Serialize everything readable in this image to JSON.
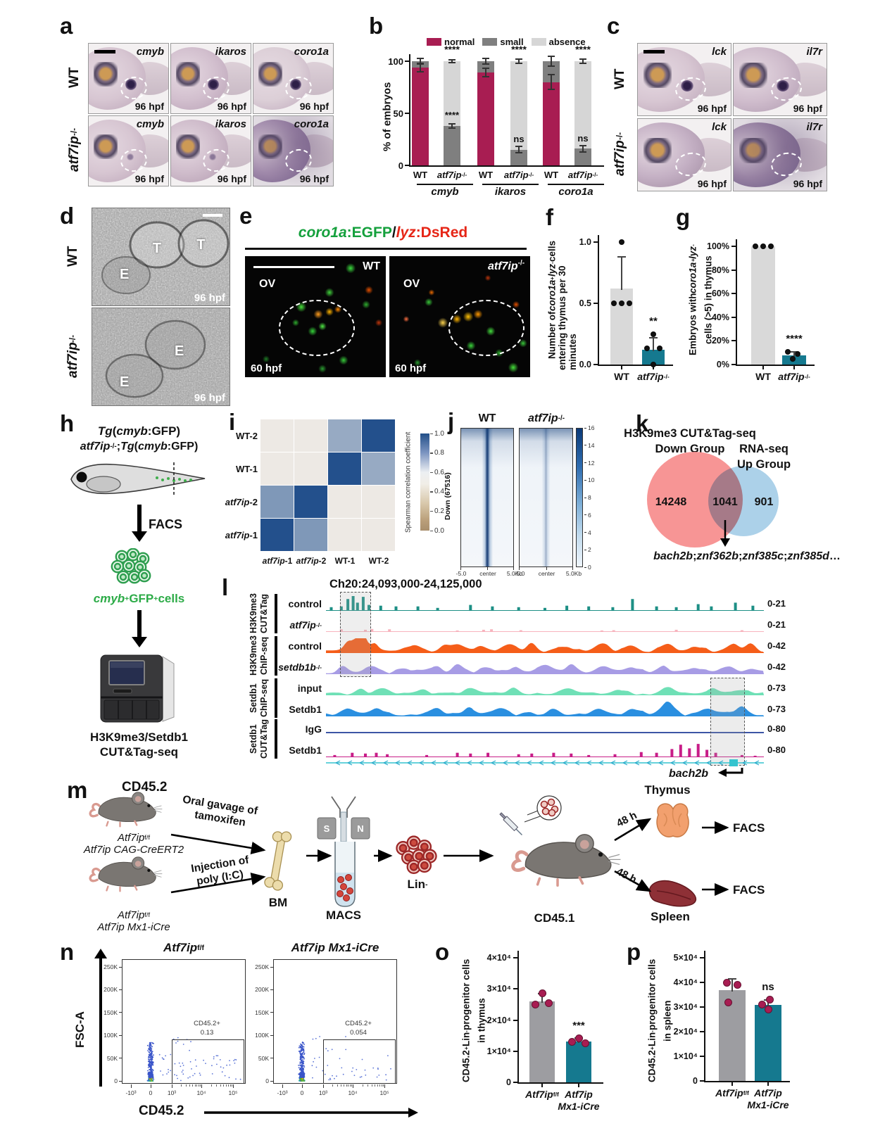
{
  "colors": {
    "crimson": "#a81d52",
    "teal": "#15798f",
    "wt_bar_light": "#d9d9d9",
    "wt_bar_gray": "#9d9da1",
    "small_gray": "#7f7f7f",
    "absence_gray": "#d6d6d6",
    "dot_crimson": "#a81d52"
  },
  "panels": {
    "a": {
      "label": "a",
      "row_labels": [
        "WT",
        "*atf7ip*^-/-^"
      ],
      "genes": [
        "*cmyb*",
        "*ikaros*",
        "*coro1a*"
      ],
      "time": "96 hpf"
    },
    "b": {
      "label": "b"
    },
    "c": {
      "label": "c",
      "row_labels": [
        "WT",
        "*atf7ip*^-/-^"
      ],
      "genes": [
        "*lck*",
        "*il7r*"
      ],
      "time": "96 hpf"
    },
    "d": {
      "label": "d",
      "row_labels": [
        "WT",
        "*atf7ip*^-/-^"
      ],
      "time": "96 hpf",
      "marks_wt": [
        "T",
        "T",
        "E"
      ],
      "marks_ko": [
        "E",
        "E"
      ]
    },
    "e": {
      "label": "e",
      "title_parts": [
        {
          "t": "coro1a",
          "c": "#14a03c",
          "i": true
        },
        {
          "t": ":EGFP",
          "c": "#14a03c",
          "i": false
        },
        {
          "t": "/",
          "c": "#111111",
          "i": false
        },
        {
          "t": "lyz",
          "c": "#e62617",
          "i": true
        },
        {
          "t": ":DsRed",
          "c": "#e62617",
          "i": false
        }
      ],
      "image_tags": [
        "WT",
        "*atf7ip*^-/-^"
      ],
      "region": "OV",
      "time": "60 hpf"
    },
    "f": {
      "label": "f"
    },
    "g": {
      "label": "g"
    },
    "h": {
      "label": "h",
      "line1": "*Tg*(*cmyb*:GFP)",
      "line2": "*atf7ip*^-/-^;*Tg*(*cmyb*:GFP)",
      "facs": "FACS",
      "cells": "*cmyb*^+^GFP^+^ cells",
      "cells_color": "#2cab47",
      "seq_line1": "H3K9me3/Setdb1",
      "seq_line2": "CUT&Tag-seq"
    },
    "i": {
      "label": "i"
    },
    "j": {
      "label": "j"
    },
    "k": {
      "label": "k",
      "left_title": [
        "H3K9me3 CUT&Tag-seq",
        "Down Group"
      ],
      "right_title": [
        "RNA-seq",
        "Up Group"
      ],
      "left_count": "14248",
      "overlap_count": "1041",
      "right_count": "901",
      "left_color": "#f68c8c",
      "right_color": "#a8cfe8",
      "genes": "*bach2b*; *znf362b*; *znf385c*; *znf385d*…"
    },
    "l": {
      "label": "l",
      "title": "Ch20:24,093,000-24,125,000",
      "groups": [
        {
          "name": [
            "H3K9me3",
            "CUT&Tag"
          ],
          "tracks": [
            {
              "label": "control",
              "range": "0-21",
              "color": "#1d8f85"
            },
            {
              "label": "*atf7ip*^-/-^",
              "range": "0-21",
              "color": "#f7b3bd"
            }
          ]
        },
        {
          "name": [
            "H3K9me3",
            "ChIP-seq"
          ],
          "tracks": [
            {
              "label": "control",
              "range": "0-42",
              "color": "#f55d19"
            },
            {
              "label": "*setdb1b*^-/-^",
              "range": "0-42",
              "color": "#a79ce5"
            }
          ]
        },
        {
          "name": [
            "Setdb1",
            "ChIP-seq"
          ],
          "tracks": [
            {
              "label": "input",
              "range": "0-73",
              "color": "#6fe0b6"
            },
            {
              "label": "Setdb1",
              "range": "0-73",
              "color": "#2a8fe0"
            }
          ]
        },
        {
          "name": [
            "Setdb1",
            "CUT&Tag"
          ],
          "tracks": [
            {
              "label": "IgG",
              "range": "0-80",
              "color": "#3c55a5"
            },
            {
              "label": "Setdb1",
              "range": "0-80",
              "color": "#c81d88"
            }
          ]
        }
      ],
      "gene_label": "*bach2b*",
      "gene_color": "#35c4cf"
    },
    "m": {
      "label": "m",
      "cd452": "CD45.2",
      "mouse1": [
        "*Atf7ip*^f/f^",
        "*Atf7ip CAG-CreERT2*"
      ],
      "arrow1": [
        "Oral gavage of",
        "tamoxifen"
      ],
      "mouse2": [
        "*Atf7ip*^f/f^",
        "*Atf7ip Mx1-iCre*"
      ],
      "arrow2": [
        "Injection of",
        "poly (I:C)"
      ],
      "bm": "BM",
      "macs": "MACS",
      "magnet": [
        "S",
        "N"
      ],
      "lin": "Lin^-^",
      "cd451": "CD45.1",
      "t48": [
        "48 h",
        "48 h"
      ],
      "thymus": "Thymus",
      "spleen": "Spleen",
      "facs": [
        "FACS",
        "FACS"
      ]
    },
    "n": {
      "label": "n",
      "plots": [
        {
          "title": "*Atf7ip*^f/f^",
          "gate_label": "CD45.2+",
          "gate_value": "0.13"
        },
        {
          "title": "*Atf7ip Mx1-iCre*",
          "gate_label": "CD45.2+",
          "gate_value": "0.054"
        }
      ],
      "yticks": [
        "250K",
        "200K",
        "150K",
        "100K",
        "50K",
        "0"
      ],
      "xticks": [
        "-10³",
        "0",
        "10³",
        "10⁴",
        "10⁵"
      ],
      "ylabel": "FSC-A",
      "xlabel": "CD45.2"
    },
    "o": {
      "label": "o"
    },
    "p": {
      "label": "p"
    }
  },
  "chart_data": [
    {
      "id": "b",
      "type": "stacked_bar",
      "ylabel": "% of embryos",
      "yticks": [
        "0",
        "50",
        "100"
      ],
      "legend": [
        "normal",
        "small",
        "absence"
      ],
      "legend_colors": [
        "#a81d52",
        "#7f7f7f",
        "#d6d6d6"
      ],
      "groups": [
        {
          "gene": "*cmyb*",
          "bars": [
            {
              "x": "WT",
              "normal": 94,
              "small": 6,
              "absence": 0,
              "err": 4,
              "err_top": 3
            },
            {
              "x": "*atf7ip*^-/-^",
              "normal": 0,
              "small": 38,
              "absence": 62,
              "err": 2,
              "err_top": 1.5,
              "sig_top": "****",
              "sig_mid": "****"
            }
          ]
        },
        {
          "gene": "*ikaros*",
          "bars": [
            {
              "x": "WT",
              "normal": 89,
              "small": 11,
              "absence": 0,
              "err": 4,
              "err_top": 3
            },
            {
              "x": "*atf7ip*^-/-^",
              "normal": 0,
              "small": 15,
              "absence": 85,
              "err": 3,
              "err_top": 2,
              "sig_top": "****",
              "sig_mid": "ns"
            }
          ]
        },
        {
          "gene": "*coro1a*",
          "bars": [
            {
              "x": "WT",
              "normal": 80,
              "small": 20,
              "absence": 0,
              "err": 7,
              "err_top": 5
            },
            {
              "x": "*atf7ip*^-/-^",
              "normal": 0,
              "small": 16,
              "absence": 84,
              "err": 3,
              "err_top": 2,
              "sig_top": "****",
              "sig_mid": "ns"
            }
          ]
        }
      ]
    },
    {
      "id": "f",
      "type": "bar",
      "ylabel_lines": [
        "Number of *coro1a*^+^*lyz*^-^ cells",
        "entering thymus per 30 minutes"
      ],
      "yticks": [
        "0.0",
        "0.5",
        "1.0"
      ],
      "ymax": 1,
      "bars": [
        {
          "x": "WT",
          "value": 0.62,
          "err": 0.26,
          "color": "#d9d9d9",
          "points": [
            1.0,
            0.5,
            0.5,
            0.5
          ]
        },
        {
          "x": "*atf7ip*^-/-^",
          "value": 0.12,
          "err": 0.1,
          "color": "#15798f",
          "points": [
            0.25,
            0.13,
            0.13,
            0.0
          ],
          "sig": "**"
        }
      ],
      "point_color": "#111111"
    },
    {
      "id": "g",
      "type": "bar",
      "ylabel_lines": [
        "Embryos with *coro1a*^+^*lyz*^-^",
        "cells (>5) in thymus"
      ],
      "yticks": [
        "0%",
        "20%",
        "40%",
        "60%",
        "80%",
        "100%"
      ],
      "ymax": 100,
      "bars": [
        {
          "x": "WT",
          "value": 100,
          "err": 0,
          "color": "#d9d9d9",
          "points": [
            100,
            100,
            100
          ]
        },
        {
          "x": "*atf7ip*^-/-^",
          "value": 8,
          "err": 3,
          "color": "#15798f",
          "points": [
            11,
            9,
            5
          ],
          "sig": "****"
        }
      ],
      "point_color": "#111111"
    },
    {
      "id": "i",
      "type": "heatmap",
      "rows": [
        "WT-2",
        "WT-1",
        "*atf7ip*-2",
        "*atf7ip*-1"
      ],
      "cols": [
        "*atf7ip*-1",
        "*atf7ip*-2",
        "WT-1",
        "WT-2"
      ],
      "matrix": [
        [
          0.5,
          0.5,
          0.75,
          1.0
        ],
        [
          0.5,
          0.5,
          1.0,
          0.75
        ],
        [
          0.8,
          1.0,
          0.5,
          0.5
        ],
        [
          1.0,
          0.8,
          0.5,
          0.5
        ]
      ],
      "colorbar_label": "Spearman correlation coefficient",
      "colorbar_ticks": [
        "1.0",
        "0.8",
        "0.6",
        "0.4",
        "0.2",
        "0.0"
      ]
    },
    {
      "id": "j",
      "type": "signal_heatmap",
      "titles": [
        "WT",
        "*atf7ip*^-/-^"
      ],
      "row_label": "Down (67516)",
      "xticks": [
        "-5.0",
        "center",
        "5.0Kb"
      ],
      "colorbar_ticks": [
        "16",
        "14",
        "12",
        "10",
        "8",
        "6",
        "4",
        "2",
        "0"
      ]
    },
    {
      "id": "o",
      "type": "bar",
      "ylabel_lines": [
        "CD45.2^+^Lin^-^ progenitor cells",
        "in thymus"
      ],
      "yticks": [
        "0",
        "1×10⁴",
        "2×10⁴",
        "3×10⁴",
        "4×10⁴"
      ],
      "ymax": 4,
      "bars": [
        {
          "x": "*Atf7ip*^f/f^",
          "value": 2.6,
          "err": 0.25,
          "color": "#9d9da1",
          "points": [
            2.85,
            2.5,
            2.55
          ]
        },
        {
          "x": "*Atf7ip*",
          "x2": "*Mx1-iCre*",
          "value": 1.3,
          "err": 0.12,
          "color": "#15798f",
          "points": [
            1.42,
            1.3,
            1.25
          ],
          "sig": "***"
        }
      ],
      "point_color": "#a81d52"
    },
    {
      "id": "p",
      "type": "bar",
      "ylabel_lines": [
        "CD45.2^+^Lin^-^ progenitor cells",
        "in spleen"
      ],
      "yticks": [
        "0",
        "1×10⁴",
        "2×10⁴",
        "3×10⁴",
        "4×10⁴",
        "5×10⁴"
      ],
      "ymax": 5,
      "bars": [
        {
          "x": "*Atf7ip*^f/f^",
          "value": 3.7,
          "err": 0.45,
          "color": "#9d9da1",
          "points": [
            4.0,
            3.9,
            3.2
          ]
        },
        {
          "x": "*Atf7ip*",
          "x2": "*Mx1-iCre*",
          "value": 3.1,
          "err": 0.2,
          "color": "#15798f",
          "points": [
            3.3,
            3.1,
            2.9
          ],
          "sig": "ns"
        }
      ],
      "point_color": "#a81d52"
    }
  ]
}
